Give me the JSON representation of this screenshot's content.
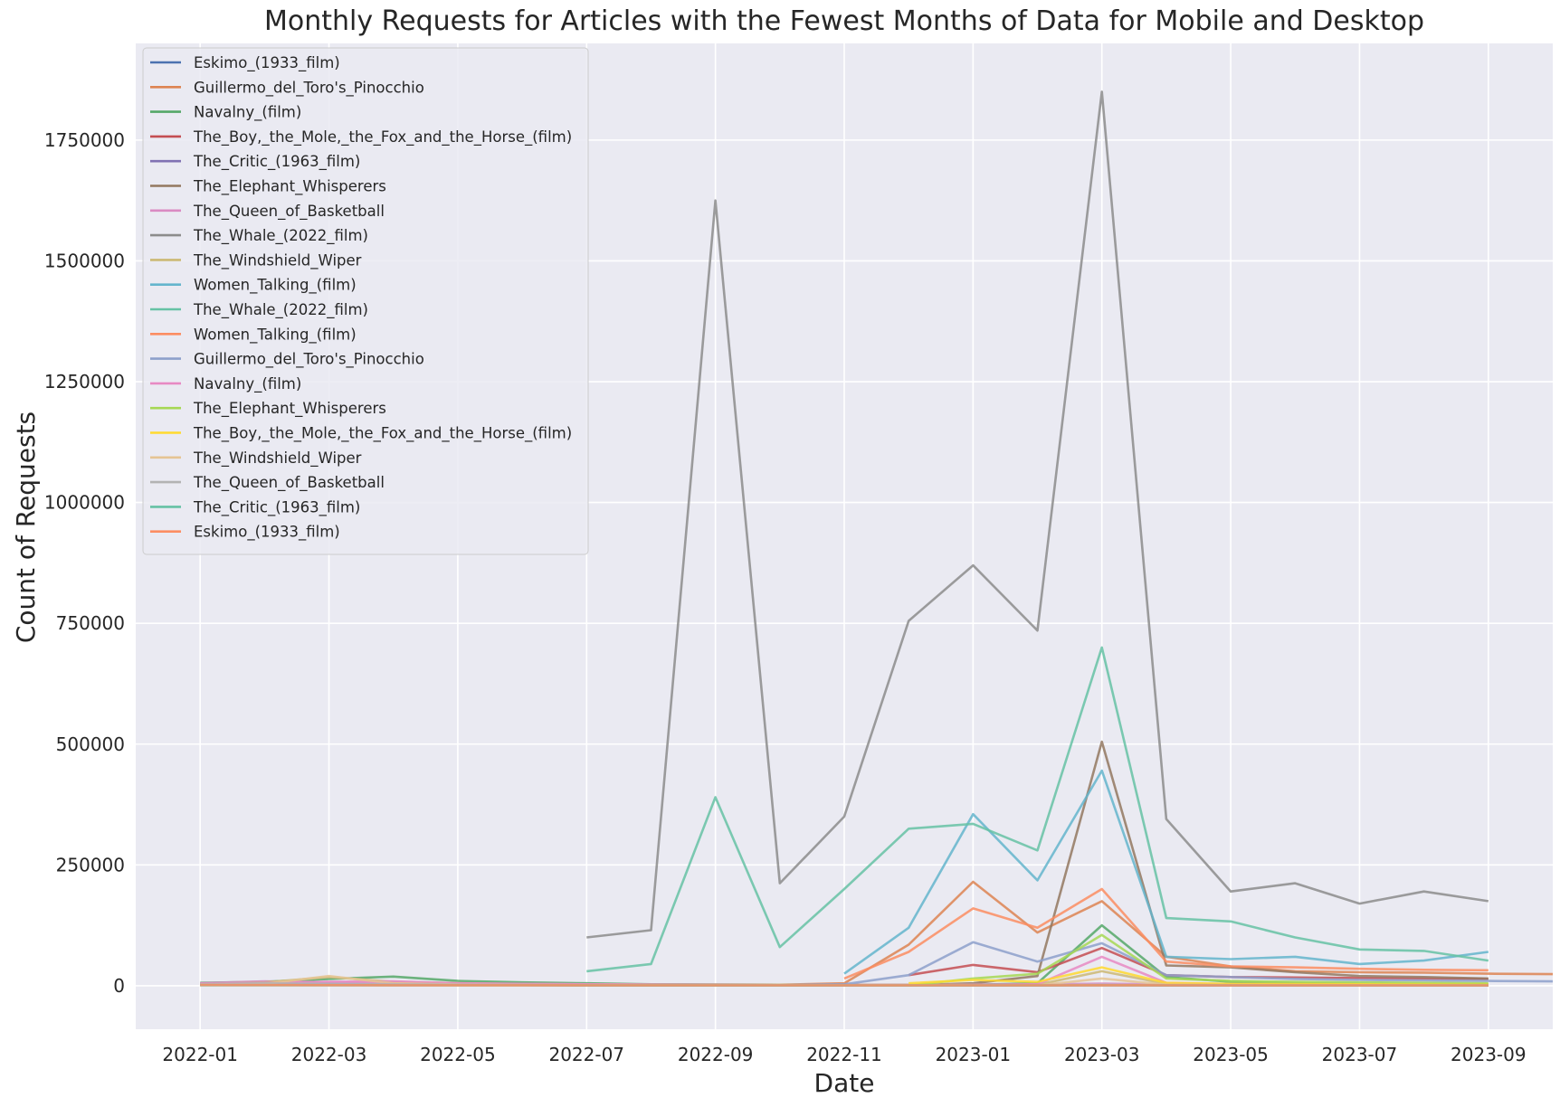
{
  "chart_data": {
    "type": "line",
    "title": "Monthly Requests for Articles with the Fewest Months of Data for Mobile and Desktop",
    "xlabel": "Date",
    "ylabel": "Count of Requests",
    "x_tick_labels": [
      "2022-01",
      "2022-03",
      "2022-05",
      "2022-07",
      "2022-09",
      "2022-11",
      "2023-01",
      "2023-03",
      "2023-05",
      "2023-07",
      "2023-09"
    ],
    "y_tick_labels": [
      "0",
      "250000",
      "500000",
      "750000",
      "1000000",
      "1250000",
      "1500000",
      "1750000"
    ],
    "x_range": [
      "2021-12",
      "2023-10"
    ],
    "ylim": [
      -90000,
      1950000
    ],
    "grid": true,
    "legend_position": "upper-left",
    "series": [
      {
        "name": "Eskimo_(1933_film)",
        "color": "#4c72b0",
        "start": "2022-01",
        "values": [
          3000,
          2500,
          2000,
          1800,
          1700,
          1600,
          1500,
          1400,
          1300,
          1300,
          1200,
          1200,
          1300,
          1200,
          1500,
          1100,
          1000,
          950,
          900,
          900,
          850
        ]
      },
      {
        "name": "Guillermo_del_Toro's_Pinocchio",
        "color": "#dd8452",
        "start": "2022-10",
        "values": [
          2000,
          5000,
          85000,
          215000,
          110000,
          175000,
          60000,
          40000,
          30000,
          28000,
          27000,
          25000,
          24000
        ]
      },
      {
        "name": "Navalny_(film)",
        "color": "#55a868",
        "start": "2022-01",
        "values": [
          6000,
          8000,
          14000,
          19000,
          10000,
          7000,
          5000,
          3000,
          2500,
          2000,
          2000,
          2000,
          2000,
          5000,
          125000,
          18000,
          8000,
          5000,
          4000,
          3500,
          3000
        ]
      },
      {
        "name": "The_Boy,_the_Mole,_the_Fox_and_the_Horse_(film)",
        "color": "#c44e52",
        "start": "2022-12",
        "values": [
          22000,
          43000,
          28000,
          78000,
          22000,
          18000,
          17000,
          16000,
          15000,
          14000
        ]
      },
      {
        "name": "The_Critic_(1963_film)",
        "color": "#8172b3",
        "start": "2022-01",
        "values": [
          2000,
          1800,
          1600,
          1500,
          1400,
          1300,
          1200,
          1200,
          1100,
          1100,
          1000,
          1000,
          1100,
          1000,
          1200,
          900,
          900,
          800,
          800,
          800,
          700
        ]
      },
      {
        "name": "The_Elephant_Whisperers",
        "color": "#937860",
        "start": "2022-12",
        "values": [
          1000,
          5000,
          20000,
          505000,
          42000,
          38000,
          28000,
          20000,
          18000,
          15000
        ]
      },
      {
        "name": "The_Queen_of_Basketball",
        "color": "#da8bc3",
        "start": "2022-01",
        "values": [
          5000,
          9000,
          7000,
          6000,
          4500,
          3500,
          3000,
          2500,
          2300,
          2000,
          2000,
          2000,
          2200,
          2500,
          4500,
          2500,
          2000,
          1800,
          1700,
          1600,
          1500
        ]
      },
      {
        "name": "The_Whale_(2022_film)",
        "color": "#8c8c8c",
        "start": "2022-07",
        "values": [
          100000,
          115000,
          1625000,
          212000,
          350000,
          755000,
          870000,
          735000,
          1850000,
          345000,
          195000,
          212000,
          170000,
          195000,
          175000
        ]
      },
      {
        "name": "The_Windshield_Wiper",
        "color": "#ccb974",
        "start": "2022-01",
        "values": [
          3000,
          7000,
          18000,
          8000,
          5000,
          3500,
          3000,
          2500,
          2200,
          2000,
          1800,
          1800,
          2000,
          2000,
          30000,
          4000,
          2500,
          2000,
          1800,
          1600,
          1500
        ]
      },
      {
        "name": "Women_Talking_(film)",
        "color": "#64b5cd",
        "start": "2022-11",
        "values": [
          25000,
          120000,
          355000,
          218000,
          445000,
          60000,
          55000,
          60000,
          45000,
          52000,
          70000
        ]
      },
      {
        "name": "The_Whale_(2022_film)",
        "color": "#66c2a5",
        "start": "2022-07",
        "values": [
          30000,
          45000,
          390000,
          80000,
          200000,
          325000,
          335000,
          280000,
          700000,
          140000,
          133000,
          100000,
          75000,
          72000,
          52000
        ]
      },
      {
        "name": "Women_Talking_(film)",
        "color": "#fc8d62",
        "start": "2022-11",
        "values": [
          15000,
          70000,
          160000,
          120000,
          200000,
          50000,
          40000,
          38000,
          35000,
          33000,
          32000
        ]
      },
      {
        "name": "Guillermo_del_Toro's_Pinocchio",
        "color": "#8da0cb",
        "start": "2022-10",
        "values": [
          1000,
          3000,
          22000,
          90000,
          50000,
          88000,
          22000,
          18000,
          14000,
          12000,
          11000,
          10000,
          9000
        ]
      },
      {
        "name": "Navalny_(film)",
        "color": "#e78ac3",
        "start": "2022-01",
        "values": [
          4000,
          6000,
          8000,
          9000,
          5000,
          4000,
          3000,
          2000,
          1500,
          1200,
          1200,
          1200,
          1500,
          3000,
          60000,
          6000,
          3000,
          2000,
          1500,
          1300,
          1200
        ]
      },
      {
        "name": "The_Elephant_Whisperers",
        "color": "#a6d854",
        "start": "2022-12",
        "values": [
          500,
          15000,
          25000,
          105000,
          15000,
          10000,
          8000,
          7000,
          6000,
          5000
        ]
      },
      {
        "name": "The_Boy,_the_Mole,_the_Fox_and_the_Horse_(film)",
        "color": "#ffd92f",
        "start": "2022-12",
        "values": [
          5000,
          12000,
          8000,
          38000,
          6000,
          4000,
          3500,
          3000,
          2500,
          2000
        ]
      },
      {
        "name": "The_Windshield_Wiper",
        "color": "#e5c494",
        "start": "2022-01",
        "values": [
          1500,
          4000,
          20000,
          5000,
          2500,
          1500,
          1200,
          1000,
          900,
          800,
          700,
          700,
          800,
          800,
          15000,
          2000,
          1200,
          900,
          800,
          700,
          600
        ]
      },
      {
        "name": "The_Queen_of_Basketball",
        "color": "#b3b3b3",
        "start": "2022-01",
        "values": [
          3000,
          5000,
          4000,
          3000,
          2000,
          1500,
          1200,
          1000,
          900,
          800,
          800,
          800,
          900,
          1000,
          2000,
          1000,
          800,
          700,
          700,
          600,
          600
        ]
      },
      {
        "name": "The_Critic_(1963_film)",
        "color": "#66c2a5",
        "start": "2022-01",
        "values": [
          1000,
          900,
          800,
          800,
          700,
          700,
          600,
          600,
          600,
          500,
          500,
          500,
          600,
          500,
          700,
          500,
          500,
          400,
          400,
          400,
          400
        ]
      },
      {
        "name": "Eskimo_(1933_film)",
        "color": "#fc8d62",
        "start": "2022-01",
        "values": [
          1500,
          1300,
          1200,
          1000,
          900,
          900,
          800,
          800,
          700,
          700,
          700,
          700,
          800,
          700,
          900,
          700,
          600,
          600,
          500,
          500,
          500
        ]
      }
    ]
  }
}
